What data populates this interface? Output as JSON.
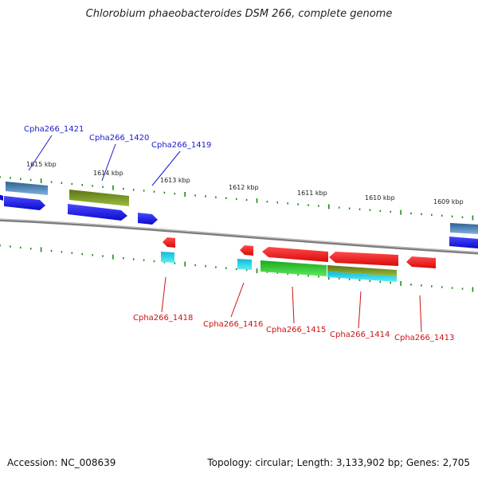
{
  "title": "Chlorobium phaeobacteroides DSM 266, complete genome",
  "footer": {
    "accession": "Accession: NC_008639",
    "summary": "Topology: circular; Length: 3,133,902 bp; Genes: 2,705"
  },
  "scale_labels": [
    "1615 kbp",
    "1614 kbp",
    "1613 kbp",
    "1612 kbp",
    "1611 kbp",
    "1610 kbp",
    "1609 kbp"
  ],
  "gene_labels": {
    "forward": [
      "Cpha266_1421",
      "Cpha266_1420",
      "Cpha266_1419"
    ],
    "reverse": [
      "Cpha266_1418",
      "Cpha266_1416",
      "Cpha266_1415",
      "Cpha266_1414",
      "Cpha266_1413"
    ]
  },
  "colors": {
    "forward_label": "#1a1acc",
    "reverse_label": "#cc1111",
    "forward_gene": "#1515e6",
    "reverse_gene": "#ee1515",
    "steelblue_feature": "#4a86c8",
    "olive_feature": "#7a9a24",
    "green_feature": "#2ec42e",
    "cyan_feature": "#18d8ea",
    "tick": "#1e8a1e",
    "backbone": "#8a8a8a"
  }
}
